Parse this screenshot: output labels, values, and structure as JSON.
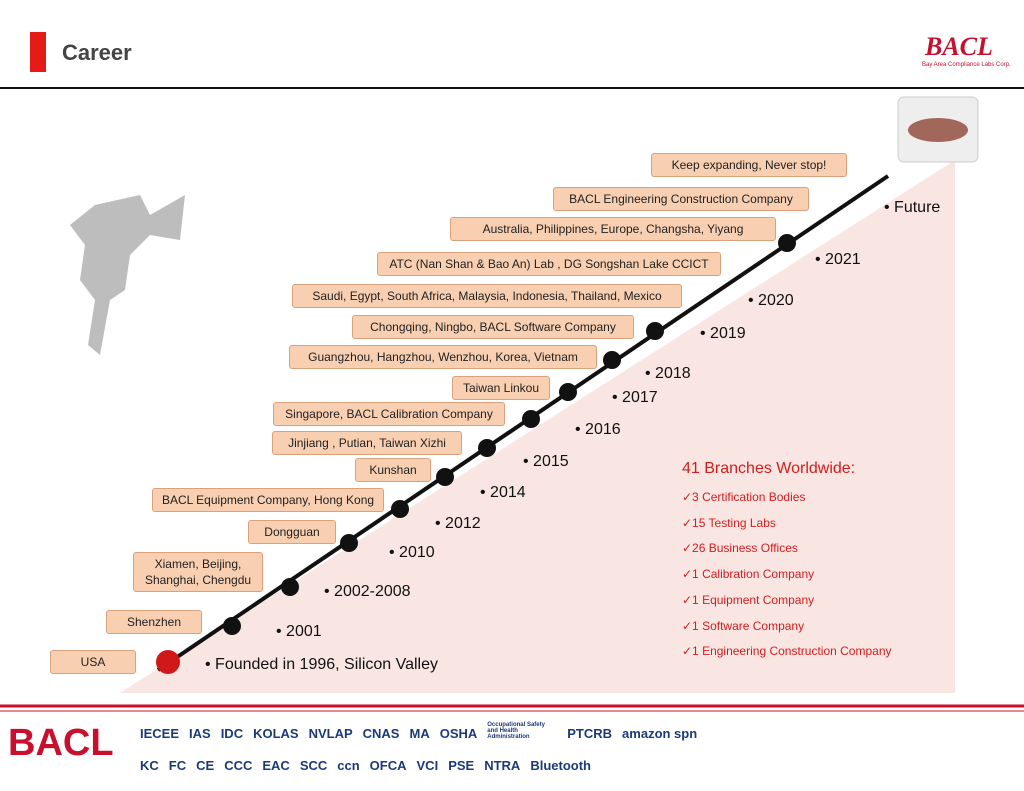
{
  "header": {
    "title": "Career",
    "logo": {
      "name": "BACL",
      "tagline": "Bay Area Compliance Labs Corp."
    }
  },
  "timeline": {
    "boxes": [
      "USA",
      "Shenzhen",
      "Xiamen, Beijing,\nShanghai, Chengdu",
      "Dongguan",
      "BACL Equipment Company, Hong Kong",
      "Kunshan",
      "Jinjiang , Putian, Taiwan Xizhi",
      "Singapore, BACL Calibration Company",
      "Taiwan Linkou",
      "Guangzhou, Hangzhou, Wenzhou, Korea, Vietnam",
      "Chongqing, Ningbo, BACL Software Company",
      "Saudi, Egypt, South Africa, Malaysia, Indonesia, Thailand, Mexico",
      "ATC (Nan Shan & Bao An) Lab , DG Songshan Lake CCICT",
      "Australia, Philippines, Europe, Changsha, Yiyang",
      "BACL Engineering Construction Company",
      "Keep expanding, Never stop!"
    ],
    "years": [
      "Founded in 1996, Silicon Valley",
      "2001",
      "2002-2008",
      "2010",
      "2012",
      "2014",
      "2015",
      "2016",
      "2017",
      "2018",
      "2019",
      "2020",
      "2021",
      "Future"
    ]
  },
  "summary": {
    "title": "41 Branches Worldwide:",
    "items": [
      "✓3  Certification Bodies",
      "✓15 Testing Labs",
      "✓26 Business Offices",
      "✓1  Calibration Company",
      "✓1  Equipment Company",
      "✓1  Software Company",
      "✓1  Engineering Construction Company"
    ]
  },
  "footer": {
    "brand": "BACL",
    "logos_top": [
      "IECEE",
      "IAS",
      "IDC",
      "KOLAS",
      "NVLAP",
      "CNAS",
      "MA",
      "OSHA",
      "Occupational Safety and Health Administration",
      "PTCRB",
      "amazon spn"
    ],
    "logos_bottom": [
      "KC",
      "FC",
      "CE",
      "CCC",
      "EAC",
      "SCC",
      "ccn",
      "OFCA",
      "VCI",
      "PSE",
      "NTRA",
      "Bluetooth"
    ]
  }
}
